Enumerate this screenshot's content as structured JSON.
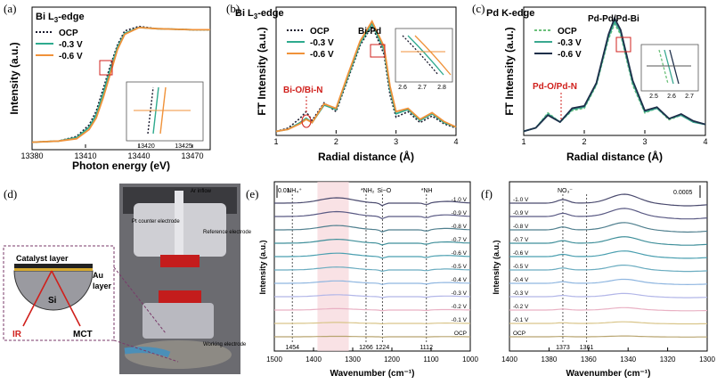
{
  "panels": [
    {
      "id": "a",
      "label": "(a)"
    },
    {
      "id": "b",
      "label": "(b)"
    },
    {
      "id": "c",
      "label": "(c)"
    },
    {
      "id": "d",
      "label": "(d)"
    },
    {
      "id": "e",
      "label": "(e)"
    },
    {
      "id": "f",
      "label": "(f)"
    }
  ],
  "colors": {
    "ocp": "#1a1a2e",
    "v03": "#2eaa8e",
    "v06": "#f0923a",
    "pd_ocp": "#6cc07a",
    "pd_v03": "#3aa890",
    "pd_v06": "#1e2f4a",
    "red": "#d0201c"
  },
  "diagram_d": {
    "catalyst_layer": "Catalyst layer",
    "au_layer": "Au\nlayer",
    "au_line1": "Au",
    "au_line2": "layer",
    "si": "Si",
    "ir": "IR",
    "mct": "MCT",
    "photo_labels": [
      "Pt counter electrode",
      "Reference electrode",
      "Ar inflow",
      "Working electrode"
    ]
  },
  "chart_data": [
    {
      "panel": "a",
      "type": "line",
      "title": "Bi L3-edge",
      "xlabel": "Photon energy (eV)",
      "ylabel": "Intensity (a.u.)",
      "xlim": [
        13380,
        13480
      ],
      "xticks": [
        13380,
        13410,
        13440,
        13470
      ],
      "series": [
        {
          "name": "OCP",
          "style": "dotted",
          "x": [
            13380,
            13395,
            13405,
            13412,
            13416,
            13420,
            13424,
            13428,
            13432,
            13440,
            13450,
            13470,
            13480
          ],
          "y": [
            0.05,
            0.06,
            0.1,
            0.2,
            0.32,
            0.52,
            0.72,
            0.9,
            1.02,
            1.06,
            1.04,
            1.03,
            1.03
          ]
        },
        {
          "name": "-0.3 V",
          "style": "solid",
          "x": [
            13380,
            13395,
            13405,
            13412,
            13416,
            13420,
            13424,
            13428,
            13432,
            13440,
            13450,
            13470,
            13480
          ],
          "y": [
            0.05,
            0.06,
            0.09,
            0.18,
            0.29,
            0.48,
            0.69,
            0.88,
            1.0,
            1.05,
            1.04,
            1.03,
            1.03
          ]
        },
        {
          "name": "-0.6 V",
          "style": "solid",
          "x": [
            13380,
            13395,
            13405,
            13412,
            13416,
            13420,
            13424,
            13428,
            13432,
            13440,
            13450,
            13470,
            13480
          ],
          "y": [
            0.05,
            0.06,
            0.08,
            0.16,
            0.26,
            0.44,
            0.65,
            0.86,
            0.99,
            1.05,
            1.04,
            1.03,
            1.03
          ]
        }
      ],
      "inset": {
        "xticks": [
          13420,
          13425
        ]
      }
    },
    {
      "panel": "b",
      "type": "line",
      "title": "Bi L3-edge",
      "xlabel": "Radial distance (Å)",
      "ylabel": "FT Intensity (a.u.)",
      "xlim": [
        1,
        4
      ],
      "xticks": [
        1,
        2,
        3,
        4
      ],
      "annotations": [
        "Bi-Pd",
        "Bi-O/Bi-N"
      ],
      "series": [
        {
          "name": "OCP",
          "style": "dotted",
          "x": [
            1,
            1.2,
            1.4,
            1.5,
            1.6,
            1.8,
            2.0,
            2.2,
            2.4,
            2.6,
            2.8,
            2.9,
            3.0,
            3.2,
            3.4,
            3.6,
            3.8,
            4.0
          ],
          "y": [
            0.02,
            0.05,
            0.14,
            0.2,
            0.12,
            0.28,
            0.2,
            0.5,
            0.8,
            0.98,
            0.72,
            0.35,
            0.15,
            0.2,
            0.1,
            0.16,
            0.09,
            0.05
          ]
        },
        {
          "name": "-0.3 V",
          "style": "solid",
          "x": [
            1,
            1.2,
            1.4,
            1.5,
            1.6,
            1.8,
            2.0,
            2.2,
            2.4,
            2.6,
            2.8,
            2.9,
            3.0,
            3.2,
            3.4,
            3.6,
            3.8,
            4.0
          ],
          "y": [
            0.02,
            0.04,
            0.1,
            0.14,
            0.1,
            0.26,
            0.22,
            0.52,
            0.82,
            1.0,
            0.76,
            0.4,
            0.18,
            0.22,
            0.12,
            0.18,
            0.1,
            0.06
          ]
        },
        {
          "name": "-0.6 V",
          "style": "solid",
          "x": [
            1,
            1.2,
            1.4,
            1.5,
            1.6,
            1.8,
            2.0,
            2.2,
            2.4,
            2.6,
            2.8,
            2.9,
            3.0,
            3.2,
            3.4,
            3.6,
            3.8,
            4.0
          ],
          "y": [
            0.02,
            0.04,
            0.09,
            0.13,
            0.1,
            0.27,
            0.23,
            0.54,
            0.84,
            1.02,
            0.79,
            0.43,
            0.2,
            0.23,
            0.13,
            0.19,
            0.11,
            0.06
          ]
        }
      ],
      "inset": {
        "xticks": [
          2.6,
          2.7,
          2.8
        ]
      }
    },
    {
      "panel": "c",
      "type": "line",
      "title": "Pd K-edge",
      "xlabel": "Radial distance (Å)",
      "ylabel": "FT Intensity (a.u.)",
      "xlim": [
        1,
        4
      ],
      "xticks": [
        1,
        2,
        3,
        4
      ],
      "annotations": [
        "Pd-Pd/Pd-Bi",
        "Pd-O/Pd-N"
      ],
      "series": [
        {
          "name": "OCP",
          "style": "dashed",
          "x": [
            1,
            1.2,
            1.4,
            1.6,
            1.8,
            2.0,
            2.2,
            2.4,
            2.5,
            2.6,
            2.8,
            3.0,
            3.2,
            3.4,
            3.6,
            3.8,
            4.0
          ],
          "y": [
            0.02,
            0.05,
            0.18,
            0.1,
            0.2,
            0.22,
            0.42,
            0.82,
            0.95,
            0.86,
            0.42,
            0.18,
            0.22,
            0.12,
            0.16,
            0.1,
            0.08
          ]
        },
        {
          "name": "-0.3 V",
          "style": "solid",
          "x": [
            1,
            1.2,
            1.4,
            1.6,
            1.8,
            2.0,
            2.2,
            2.4,
            2.5,
            2.6,
            2.8,
            3.0,
            3.2,
            3.4,
            3.6,
            3.8,
            4.0
          ],
          "y": [
            0.02,
            0.05,
            0.17,
            0.1,
            0.21,
            0.23,
            0.43,
            0.84,
            0.97,
            0.88,
            0.44,
            0.19,
            0.22,
            0.13,
            0.16,
            0.1,
            0.08
          ]
        },
        {
          "name": "-0.6 V",
          "style": "solid",
          "x": [
            1,
            1.2,
            1.4,
            1.6,
            1.8,
            2.0,
            2.2,
            2.4,
            2.5,
            2.6,
            2.8,
            3.0,
            3.2,
            3.4,
            3.6,
            3.8,
            4.0
          ],
          "y": [
            0.02,
            0.05,
            0.16,
            0.1,
            0.22,
            0.24,
            0.44,
            0.86,
            1.0,
            0.9,
            0.46,
            0.2,
            0.23,
            0.13,
            0.17,
            0.11,
            0.08
          ]
        }
      ],
      "inset": {
        "xticks": [
          2.5,
          2.6,
          2.7
        ]
      }
    },
    {
      "panel": "e",
      "type": "line",
      "xlabel": "Wavenumber (cm⁻¹)",
      "ylabel": "Intensity (a.u.)",
      "xlim": [
        1500,
        1000
      ],
      "xticks": [
        1500,
        1400,
        1300,
        1200,
        1100,
        1000
      ],
      "scalebar": "0.01",
      "bands": [
        {
          "label": "NH₄⁺",
          "x": 1454
        },
        {
          "label": "*NH₂",
          "x": 1266
        },
        {
          "label": "Si−O",
          "x": 1224
        },
        {
          "label": "*NH",
          "x": 1112
        }
      ],
      "band_values": [
        "1454",
        "1266",
        "1224",
        "1112"
      ],
      "series_labels": [
        "-1.0 V",
        "-0.9 V",
        "-0.8 V",
        "-0.7 V",
        "-0.6 V",
        "-0.5 V",
        "-0.4 V",
        "-0.3 V",
        "-0.2 V",
        "-0.1 V",
        "OCP"
      ]
    },
    {
      "panel": "f",
      "type": "line",
      "xlabel": "Wavenumber (cm⁻¹)",
      "ylabel": "Intensity (a.u.)",
      "xlim": [
        1400,
        1300
      ],
      "xticks": [
        1400,
        1380,
        1360,
        1340,
        1320,
        1300
      ],
      "scalebar": "0.0005",
      "bands": [
        {
          "label": "NO₃⁻",
          "x": 1373
        },
        {
          "label": "",
          "x": 1361
        }
      ],
      "band_values": [
        "1373",
        "1361"
      ],
      "series_labels": [
        "-1.0 V",
        "-0.9 V",
        "-0.8 V",
        "-0.7 V",
        "-0.6 V",
        "-0.5 V",
        "-0.4 V",
        "-0.3 V",
        "-0.2 V",
        "-0.1 V",
        "OCP"
      ]
    }
  ]
}
